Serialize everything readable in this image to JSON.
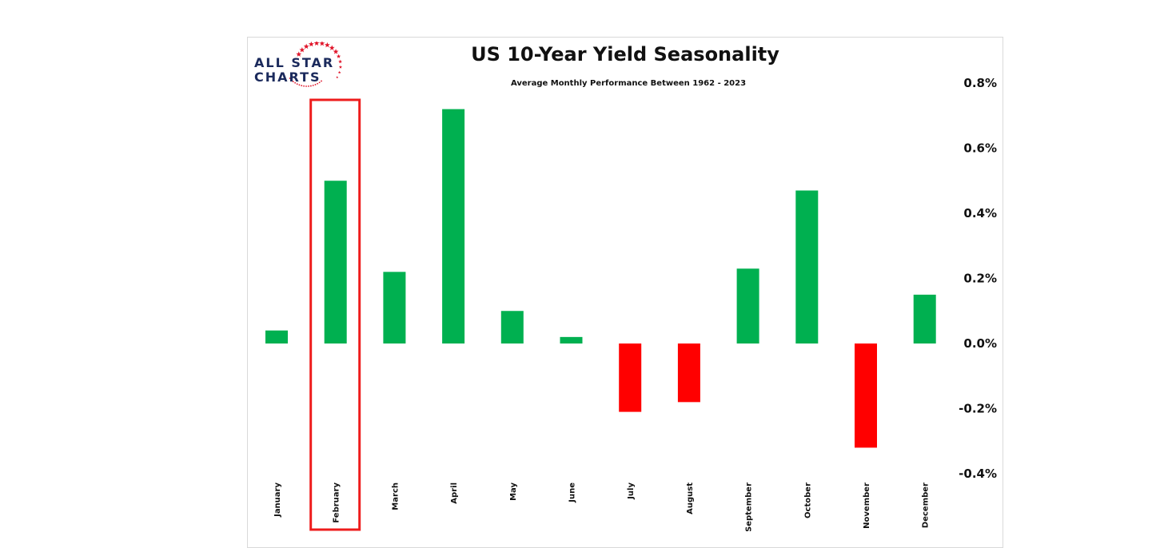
{
  "logo": {
    "line1": "ALL STAR",
    "line2": "CHARTS",
    "icon": "star-ring-icon",
    "star_color": "#e0162b",
    "text_color": "#1b2a5c"
  },
  "colors": {
    "positive": "#00b050",
    "negative": "#ff0000",
    "highlight": "#ee1c1c"
  },
  "chart_data": {
    "type": "bar",
    "title": "US 10-Year Yield Seasonality",
    "subtitle": "Average Monthly Performance Between 1962 - 2023",
    "categories": [
      "January",
      "February",
      "March",
      "April",
      "May",
      "June",
      "July",
      "August",
      "September",
      "October",
      "November",
      "December"
    ],
    "values": [
      0.04,
      0.5,
      0.22,
      0.72,
      0.1,
      0.02,
      -0.21,
      -0.18,
      0.23,
      0.47,
      -0.32,
      0.15
    ],
    "value_unit": "%",
    "ylim": [
      -0.4,
      0.8
    ],
    "yticks": [
      "0.8%",
      "0.6%",
      "0.4%",
      "0.2%",
      "0.0%",
      "-0.2%",
      "-0.4%"
    ],
    "ytick_values": [
      0.8,
      0.6,
      0.4,
      0.2,
      0.0,
      -0.2,
      -0.4
    ],
    "y_axis_position": "right",
    "grid": false,
    "highlighted_category": "February"
  }
}
